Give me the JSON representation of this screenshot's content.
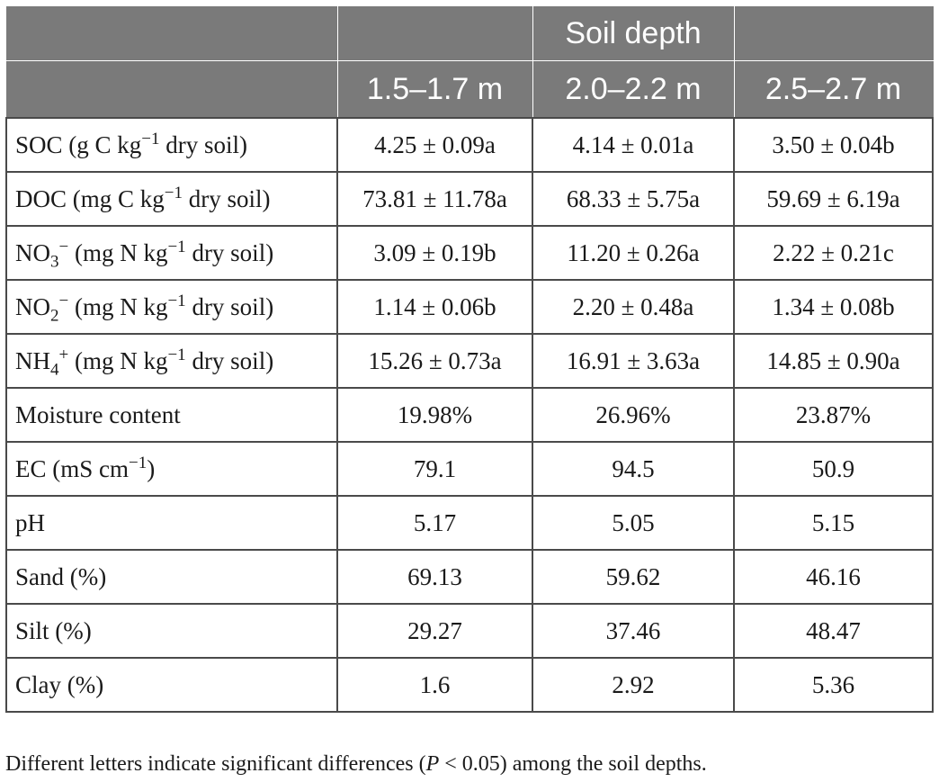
{
  "table": {
    "header": {
      "group_label": "Soil depth",
      "columns": [
        "1.5–1.7 m",
        "2.0–2.2 m",
        "2.5–2.7 m"
      ]
    },
    "rows": [
      {
        "label": {
          "pre": "SOC (g C kg",
          "sup": "−1",
          "post": " dry soil)"
        },
        "values": [
          "4.25 ± 0.09a",
          "4.14 ± 0.01a",
          "3.50 ± 0.04b"
        ]
      },
      {
        "label": {
          "pre": "DOC (mg C kg",
          "sup": "−1",
          "post": " dry soil)"
        },
        "values": [
          "73.81 ± 11.78a",
          "68.33 ± 5.75a",
          "59.69 ± 6.19a"
        ]
      },
      {
        "label": {
          "chem": "NO",
          "sub": "3",
          "ion": "−",
          "pre": " (mg N kg",
          "sup": "−1",
          "post": " dry soil)"
        },
        "values": [
          "3.09 ± 0.19b",
          "11.20 ± 0.26a",
          "2.22 ± 0.21c"
        ]
      },
      {
        "label": {
          "chem": "NO",
          "sub": "2",
          "ion": "−",
          "pre": " (mg N kg",
          "sup": "−1",
          "post": " dry soil)"
        },
        "values": [
          "1.14 ± 0.06b",
          "2.20 ± 0.48a",
          "1.34 ± 0.08b"
        ]
      },
      {
        "label": {
          "chem": "NH",
          "sub": "4",
          "ion": "+",
          "pre": " (mg N kg",
          "sup": "−1",
          "post": " dry soil)"
        },
        "values": [
          "15.26 ± 0.73a",
          "16.91 ± 3.63a",
          "14.85 ± 0.90a"
        ]
      },
      {
        "label": {
          "pre": "Moisture content"
        },
        "values": [
          "19.98%",
          "26.96%",
          "23.87%"
        ]
      },
      {
        "label": {
          "pre": "EC (mS cm",
          "sup": "−1",
          "post": ")"
        },
        "values": [
          "79.1",
          "94.5",
          "50.9"
        ]
      },
      {
        "label": {
          "pre": "pH"
        },
        "values": [
          "5.17",
          "5.05",
          "5.15"
        ]
      },
      {
        "label": {
          "pre": "Sand (%)"
        },
        "values": [
          "69.13",
          "59.62",
          "46.16"
        ]
      },
      {
        "label": {
          "pre": "Silt (%)"
        },
        "values": [
          "29.27",
          "37.46",
          "48.47"
        ]
      },
      {
        "label": {
          "pre": "Clay (%)"
        },
        "values": [
          "1.6",
          "2.92",
          "5.36"
        ]
      }
    ]
  },
  "footnote": {
    "pre": "Different letters indicate significant differences (",
    "italic": "P",
    "post": " < 0.05) among the soil depths."
  }
}
